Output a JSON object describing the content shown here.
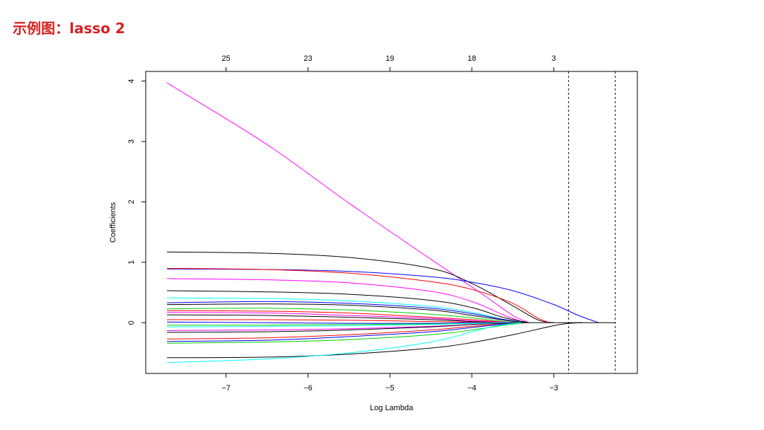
{
  "page": {
    "title": "示例图：lasso 2"
  },
  "chart_data": {
    "type": "line",
    "xlabel": "Log Lambda",
    "ylabel": "Coefficients",
    "xlim": [
      -7.98,
      -1.98
    ],
    "ylim": [
      -0.84,
      4.16
    ],
    "x_ticks": [
      -7,
      -6,
      -5,
      -4,
      -3
    ],
    "y_ticks": [
      0,
      1,
      2,
      3,
      4
    ],
    "top_axis": {
      "positions": [
        -7,
        -6,
        -5,
        -4,
        -3
      ],
      "labels": [
        "25",
        "23",
        "19",
        "18",
        "3"
      ]
    },
    "vlines": [
      -2.82,
      -2.25
    ],
    "series": [
      {
        "color": "#ff00ff",
        "x": [
          -7.72,
          -6.5,
          -5.5,
          -4.5,
          -3.9,
          -3.5,
          -3.3
        ],
        "y": [
          3.97,
          2.95,
          1.98,
          1.05,
          0.5,
          0.12,
          0.0
        ]
      },
      {
        "color": "#000000",
        "x": [
          -7.72,
          -6.5,
          -5.5,
          -4.5,
          -4.0,
          -3.5,
          -3.2,
          -3.0
        ],
        "y": [
          1.17,
          1.15,
          1.08,
          0.9,
          0.65,
          0.28,
          0.05,
          0.0
        ]
      },
      {
        "color": "#0000ff",
        "x": [
          -7.72,
          -6.5,
          -5.5,
          -4.5,
          -4.0,
          -3.5,
          -3.0,
          -2.7,
          -2.45
        ],
        "y": [
          0.89,
          0.88,
          0.85,
          0.76,
          0.67,
          0.53,
          0.3,
          0.12,
          0.0
        ]
      },
      {
        "color": "#ff0000",
        "x": [
          -7.72,
          -6.5,
          -5.5,
          -4.5,
          -4.0,
          -3.5,
          -3.2,
          -3.05
        ],
        "y": [
          0.9,
          0.88,
          0.82,
          0.68,
          0.55,
          0.32,
          0.08,
          0.0
        ]
      },
      {
        "color": "#ff00ff",
        "x": [
          -7.72,
          -6.5,
          -5.5,
          -4.5,
          -4.0,
          -3.6,
          -3.35
        ],
        "y": [
          0.73,
          0.71,
          0.66,
          0.52,
          0.35,
          0.12,
          0.0
        ]
      },
      {
        "color": "#000000",
        "x": [
          -7.72,
          -6.5,
          -5.5,
          -4.5,
          -4.0,
          -3.6,
          -3.3
        ],
        "y": [
          0.53,
          0.51,
          0.47,
          0.37,
          0.25,
          0.08,
          0.0
        ]
      },
      {
        "color": "#00ffff",
        "x": [
          -7.72,
          -6.5,
          -5.5,
          -4.5,
          -4.0,
          -3.6,
          -3.35
        ],
        "y": [
          0.41,
          0.4,
          0.36,
          0.27,
          0.17,
          0.05,
          0.0
        ]
      },
      {
        "color": "#0000ff",
        "x": [
          -7.72,
          -6.5,
          -5.5,
          -4.5,
          -4.0,
          -3.6,
          -3.35
        ],
        "y": [
          0.33,
          0.35,
          0.32,
          0.24,
          0.15,
          0.05,
          0.0
        ]
      },
      {
        "color": "#000000",
        "x": [
          -7.72,
          -6.5,
          -5.5,
          -4.5,
          -4.0,
          -3.6,
          -3.35
        ],
        "y": [
          0.3,
          0.31,
          0.29,
          0.21,
          0.12,
          0.04,
          0.0
        ]
      },
      {
        "color": "#00cd00",
        "x": [
          -7.72,
          -6.5,
          -5.5,
          -4.5,
          -4.0,
          -3.6,
          -3.35
        ],
        "y": [
          0.23,
          0.24,
          0.21,
          0.14,
          0.08,
          0.02,
          0.0
        ]
      },
      {
        "color": "#ff0000",
        "x": [
          -7.72,
          -6.5,
          -5.5,
          -4.5,
          -4.0,
          -3.6,
          -3.4
        ],
        "y": [
          0.2,
          0.19,
          0.16,
          0.09,
          0.05,
          0.01,
          0.0
        ]
      },
      {
        "color": "#ff00ff",
        "x": [
          -7.72,
          -6.5,
          -5.5,
          -4.5,
          -4.0,
          -3.6,
          -3.4
        ],
        "y": [
          0.17,
          0.16,
          0.12,
          0.07,
          0.03,
          0.01,
          0.0
        ]
      },
      {
        "color": "#000000",
        "x": [
          -7.72,
          -6.5,
          -5.5,
          -4.5,
          -4.0,
          -3.6,
          -3.4
        ],
        "y": [
          0.13,
          0.12,
          0.09,
          0.05,
          0.02,
          0.0,
          0.0
        ]
      },
      {
        "color": "#ff0000",
        "x": [
          -7.72,
          -6.5,
          -5.5,
          -4.5,
          -4.0,
          -3.6,
          -3.4
        ],
        "y": [
          0.05,
          0.05,
          0.04,
          0.02,
          0.01,
          0.0,
          0.0
        ]
      },
      {
        "color": "#0000ff",
        "x": [
          -7.72,
          -6.5,
          -5.5,
          -4.5,
          -4.0,
          -3.6,
          -3.4
        ],
        "y": [
          0.01,
          0.0,
          -0.01,
          -0.01,
          0.0,
          0.0,
          0.0
        ]
      },
      {
        "color": "#00cd00",
        "x": [
          -7.72,
          -6.5,
          -5.5,
          -4.5,
          -4.0,
          -3.6,
          -3.4
        ],
        "y": [
          -0.04,
          -0.04,
          -0.03,
          -0.02,
          -0.01,
          0.0,
          0.0
        ]
      },
      {
        "color": "#00ffff",
        "x": [
          -7.72,
          -6.5,
          -5.5,
          -4.5,
          -4.0,
          -3.6,
          -3.4
        ],
        "y": [
          -0.07,
          -0.06,
          -0.05,
          -0.03,
          -0.01,
          0.0,
          0.0
        ]
      },
      {
        "color": "#ff00ff",
        "x": [
          -7.72,
          -6.5,
          -5.5,
          -4.5,
          -4.0,
          -3.6,
          -3.4
        ],
        "y": [
          -0.13,
          -0.12,
          -0.1,
          -0.06,
          -0.03,
          -0.01,
          0.0
        ]
      },
      {
        "color": "#000000",
        "x": [
          -7.72,
          -6.5,
          -5.5,
          -4.5,
          -4.0,
          -3.6,
          -3.4
        ],
        "y": [
          -0.16,
          -0.15,
          -0.12,
          -0.07,
          -0.03,
          -0.01,
          0.0
        ]
      },
      {
        "color": "#ff0000",
        "x": [
          -7.72,
          -6.5,
          -5.5,
          -4.5,
          -4.0,
          -3.6,
          -3.35
        ],
        "y": [
          -0.27,
          -0.25,
          -0.2,
          -0.12,
          -0.06,
          -0.02,
          0.0
        ]
      },
      {
        "color": "#0000ff",
        "x": [
          -7.72,
          -6.5,
          -5.5,
          -4.5,
          -4.0,
          -3.6,
          -3.35
        ],
        "y": [
          -0.31,
          -0.29,
          -0.23,
          -0.15,
          -0.08,
          -0.02,
          0.0
        ]
      },
      {
        "color": "#00cd00",
        "x": [
          -7.72,
          -6.5,
          -5.5,
          -4.5,
          -4.0,
          -3.6,
          -3.35
        ],
        "y": [
          -0.34,
          -0.32,
          -0.28,
          -0.2,
          -0.12,
          -0.04,
          0.0
        ]
      },
      {
        "color": "#000000",
        "x": [
          -7.72,
          -6.5,
          -5.5,
          -4.5,
          -4.0,
          -3.5,
          -3.0,
          -2.8,
          -2.65
        ],
        "y": [
          -0.58,
          -0.57,
          -0.52,
          -0.42,
          -0.33,
          -0.2,
          -0.05,
          -0.01,
          0.0
        ]
      },
      {
        "color": "#00ffff",
        "x": [
          -7.72,
          -6.5,
          -5.5,
          -4.5,
          -4.0,
          -3.7,
          -3.4
        ],
        "y": [
          -0.66,
          -0.6,
          -0.5,
          -0.32,
          -0.15,
          -0.05,
          0.0
        ]
      }
    ]
  }
}
